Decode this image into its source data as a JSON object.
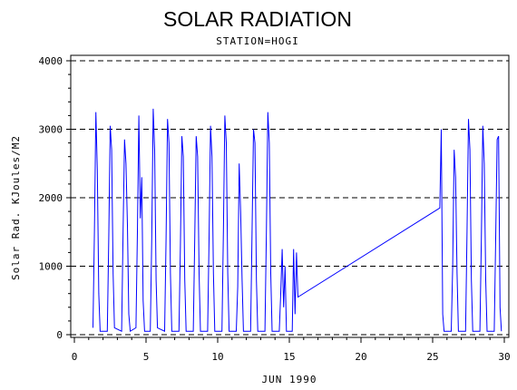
{
  "chart_data": {
    "type": "line",
    "title": "SOLAR RADIATION",
    "subtitle": "STATION=HOGI",
    "xlabel": "JUN 1990",
    "ylabel": "Solar Rad. KJoules/M2",
    "xlim": [
      0,
      30
    ],
    "ylim": [
      0,
      4000
    ],
    "xticks": [
      0,
      5,
      10,
      15,
      20,
      25,
      30
    ],
    "yticks": [
      0,
      1000,
      2000,
      3000,
      4000
    ],
    "grid": "horizontal dashed",
    "line_color": "#0000ff",
    "x": [
      1.3,
      1.4,
      1.5,
      1.6,
      1.7,
      1.8,
      2.3,
      2.4,
      2.5,
      2.6,
      2.7,
      2.8,
      3.3,
      3.4,
      3.5,
      3.6,
      3.7,
      3.8,
      3.9,
      4.3,
      4.4,
      4.5,
      4.6,
      4.7,
      4.8,
      4.9,
      5.3,
      5.4,
      5.5,
      5.6,
      5.7,
      5.8,
      6.3,
      6.4,
      6.5,
      6.6,
      6.7,
      6.8,
      7.3,
      7.4,
      7.5,
      7.6,
      7.7,
      7.8,
      8.3,
      8.4,
      8.5,
      8.6,
      8.7,
      8.8,
      9.3,
      9.4,
      9.5,
      9.6,
      9.7,
      9.8,
      10.3,
      10.4,
      10.5,
      10.6,
      10.7,
      10.8,
      11.3,
      11.4,
      11.5,
      11.6,
      11.7,
      11.8,
      12.3,
      12.4,
      12.5,
      12.6,
      12.7,
      12.8,
      13.3,
      13.4,
      13.5,
      13.6,
      13.7,
      13.8,
      14.3,
      14.4,
      14.5,
      14.6,
      14.7,
      14.8,
      15.2,
      15.3,
      15.4,
      15.5,
      15.6,
      25.5,
      25.6,
      25.7,
      25.8,
      26.3,
      26.4,
      26.5,
      26.6,
      26.7,
      26.8,
      27.3,
      27.4,
      27.5,
      27.6,
      27.7,
      27.8,
      28.3,
      28.4,
      28.5,
      28.6,
      28.7,
      28.8,
      29.3,
      29.4,
      29.5,
      29.6,
      29.7,
      29.8
    ],
    "y": [
      100,
      1500,
      3250,
      2400,
      600,
      50,
      50,
      1400,
      3050,
      2700,
      900,
      100,
      50,
      1500,
      2850,
      2500,
      1600,
      300,
      50,
      100,
      1500,
      3200,
      1700,
      2300,
      500,
      50,
      50,
      1400,
      3300,
      2700,
      800,
      100,
      50,
      1400,
      3150,
      2800,
      900,
      50,
      50,
      1300,
      2900,
      2600,
      800,
      50,
      50,
      1400,
      2900,
      2600,
      900,
      50,
      50,
      1400,
      3050,
      2600,
      900,
      50,
      50,
      1500,
      3200,
      2800,
      900,
      50,
      50,
      700,
      2500,
      1800,
      800,
      50,
      50,
      1500,
      3000,
      2800,
      800,
      50,
      50,
      1500,
      3250,
      2800,
      900,
      50,
      50,
      600,
      1250,
      400,
      1000,
      50,
      50,
      1250,
      300,
      1200,
      550,
      1850,
      3000,
      300,
      50,
      50,
      1000,
      2700,
      2300,
      900,
      50,
      50,
      1500,
      3150,
      2700,
      800,
      50,
      50,
      1400,
      3050,
      2500,
      800,
      50,
      50,
      1400,
      2850,
      2900,
      400,
      50
    ]
  }
}
